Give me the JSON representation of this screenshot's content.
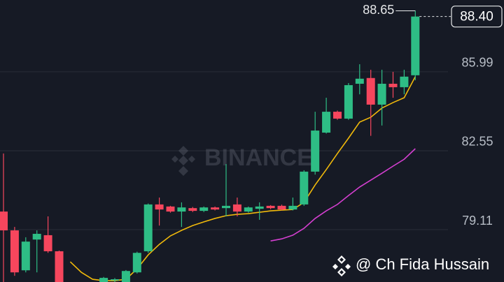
{
  "chart_data": {
    "type": "candlestick",
    "open": [
      79.9,
      79.08,
      77.34,
      78.68,
      78.87,
      78.17,
      76.6,
      76.5,
      76.6,
      76.7,
      76.9,
      76.6,
      77.25,
      78.17,
      80.21,
      80.12,
      79.9,
      80.05,
      79.93,
      80.08,
      80.05,
      80.21,
      79.9,
      80.02,
      80.15,
      80.15,
      79.99,
      80.21,
      81.64,
      83.34,
      84.25,
      83.95,
      85.47,
      85.72,
      84.56,
      85.47,
      85.32,
      85.84
    ],
    "high": [
      82.43,
      79.23,
      78.78,
      79.08,
      79.69,
      78.2,
      76.7,
      76.7,
      76.8,
      77.05,
      77.0,
      77.35,
      78.15,
      80.25,
      80.51,
      80.15,
      80.3,
      80.1,
      80.12,
      80.12,
      81.97,
      80.51,
      80.12,
      80.3,
      80.18,
      80.2,
      80.51,
      81.7,
      84.25,
      84.86,
      84.3,
      85.5,
      86.32,
      86.08,
      86.08,
      85.99,
      86.08,
      88.65
    ],
    "low": [
      76.7,
      77.1,
      77.25,
      77.25,
      78.1,
      76.4,
      76.3,
      76.3,
      76.4,
      76.6,
      76.8,
      76.5,
      77.2,
      78.1,
      79.29,
      79.85,
      79.23,
      79.88,
      79.88,
      79.95,
      79.69,
      79.69,
      79.85,
      79.54,
      80.0,
      79.95,
      79.95,
      80.15,
      81.51,
      83.3,
      83.9,
      83.9,
      85.01,
      83.2,
      83.65,
      84.86,
      85.01,
      85.62
    ],
    "close": [
      79.08,
      77.25,
      78.59,
      78.93,
      78.17,
      76.6,
      76.5,
      76.6,
      76.7,
      77.01,
      76.95,
      77.31,
      78.1,
      80.21,
      79.99,
      79.9,
      80.08,
      79.93,
      80.08,
      79.99,
      80.15,
      79.9,
      80.08,
      80.12,
      80.05,
      79.99,
      80.15,
      81.64,
      83.43,
      84.25,
      83.95,
      85.41,
      85.69,
      84.56,
      85.47,
      85.32,
      85.78,
      88.4
    ],
    "up_color": "#2ebd85",
    "down_color": "#f6465d",
    "lines": [
      {
        "color": "#f0b90b",
        "values": [
          null,
          null,
          null,
          null,
          null,
          null,
          77.71,
          77.25,
          76.95,
          76.89,
          76.89,
          76.95,
          77.4,
          78.01,
          78.47,
          78.84,
          79.08,
          79.29,
          79.45,
          79.6,
          79.72,
          79.78,
          79.81,
          79.87,
          79.93,
          79.96,
          79.99,
          80.3,
          81.06,
          81.73,
          82.43,
          83.1,
          83.8,
          84.01,
          84.41,
          84.65,
          84.86,
          85.78
        ]
      },
      {
        "color": "#d43fd0",
        "values": [
          null,
          null,
          null,
          null,
          null,
          null,
          null,
          null,
          null,
          null,
          null,
          null,
          null,
          null,
          null,
          null,
          null,
          null,
          null,
          null,
          null,
          null,
          null,
          null,
          78.62,
          78.71,
          78.87,
          79.17,
          79.6,
          79.93,
          80.21,
          80.6,
          80.97,
          81.27,
          81.57,
          81.88,
          82.18,
          82.64
        ]
      }
    ],
    "ylim": [
      76.83,
      89.12
    ],
    "yticks": [
      79.11,
      82.55,
      85.99
    ],
    "grid": true,
    "last_price": {
      "value": 88.4,
      "label": "88.40"
    },
    "high_marker": 88.65,
    "watermark": "BINANCE"
  },
  "credit": "@ Ch Fida Hussain"
}
